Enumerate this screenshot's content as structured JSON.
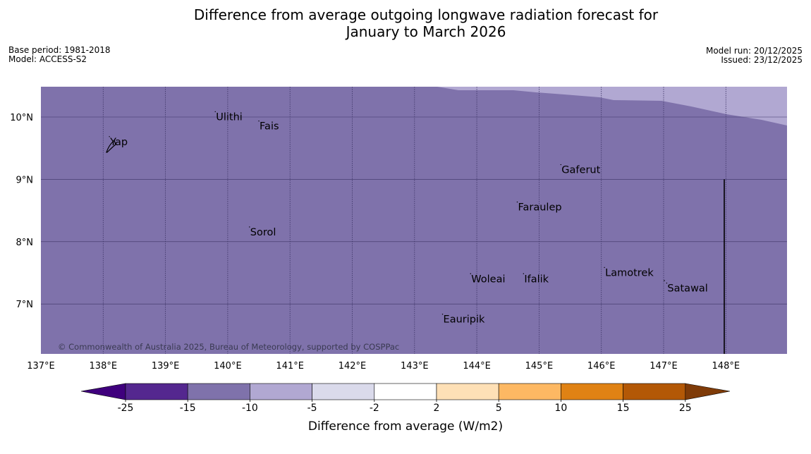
{
  "title": {
    "line1": "Difference from average outgoing longwave radiation forecast for",
    "line2": "January to March 2026"
  },
  "meta": {
    "base_period": "Base period: 1981-2018",
    "model": "Model: ACCESS-S2",
    "model_run": "Model run: 20/12/2025",
    "issued": "Issued: 23/12/2025"
  },
  "map": {
    "lon_range": [
      137,
      149
    ],
    "lat_range": [
      6.3,
      10.5
    ],
    "lon_ticks": [
      "137°E",
      "138°E",
      "139°E",
      "140°E",
      "141°E",
      "142°E",
      "143°E",
      "144°E",
      "145°E",
      "146°E",
      "147°E",
      "148°E"
    ],
    "lat_ticks": [
      "7°N",
      "8°N",
      "9°N",
      "10°N"
    ],
    "base_fill_color": "#7f72ab",
    "upper_fill_color": "#b1a8d2",
    "copyright": "© Commonwealth of Australia 2025, Bureau of Meteorology, supported by COSPPac",
    "places": [
      {
        "name": "Yap",
        "lon": 138.1,
        "lat": 9.55
      },
      {
        "name": "Ulithi",
        "lon": 139.8,
        "lat": 9.95
      },
      {
        "name": "Fais",
        "lon": 140.5,
        "lat": 9.8
      },
      {
        "name": "Gaferut",
        "lon": 145.35,
        "lat": 9.1
      },
      {
        "name": "Faraulep",
        "lon": 144.65,
        "lat": 8.5
      },
      {
        "name": "Sorol",
        "lon": 140.35,
        "lat": 8.1
      },
      {
        "name": "Woleai",
        "lon": 143.9,
        "lat": 7.35
      },
      {
        "name": "Ifalik",
        "lon": 144.75,
        "lat": 7.35
      },
      {
        "name": "Lamotrek",
        "lon": 146.05,
        "lat": 7.45
      },
      {
        "name": "Satawal",
        "lon": 147.05,
        "lat": 7.2
      },
      {
        "name": "Eauripik",
        "lon": 143.45,
        "lat": 6.7
      }
    ]
  },
  "colorbar": {
    "label": "Difference from average (W/m2)",
    "ticks": [
      "-25",
      "-15",
      "-10",
      "-5",
      "-2",
      "2",
      "5",
      "10",
      "15",
      "25"
    ],
    "colors": [
      "#54278f",
      "#7f72ab",
      "#b1a8d2",
      "#dadaeb",
      "#ffffff",
      "#fee0b6",
      "#fdb863",
      "#e08214",
      "#b35806"
    ],
    "low_extend_color": "#3f007d",
    "high_extend_color": "#7f3b08"
  }
}
